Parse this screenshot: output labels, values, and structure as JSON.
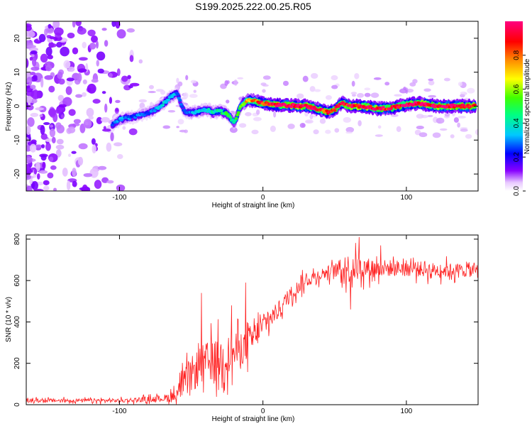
{
  "title": "S199.2025.222.00.25.R05",
  "chart_data": [
    {
      "type": "heatmap",
      "xlabel": "Height of straight line (km)",
      "ylabel": "Frequency (Hz)",
      "xlim": [
        -165,
        150
      ],
      "ylim": [
        -25,
        25
      ],
      "xticks": [
        -100,
        0,
        100
      ],
      "xticklabels": [
        "-100",
        "0",
        "100"
      ],
      "yticks": [
        -20,
        -10,
        0,
        10,
        20
      ],
      "yticklabels": [
        "-20",
        "-10",
        "0",
        "10",
        "20"
      ],
      "colorbar": {
        "label": "Normalized spectral amplitude",
        "range": [
          0,
          1
        ],
        "ticks": [
          0.0,
          0.2,
          0.4,
          0.6,
          0.8
        ],
        "ticklabels": [
          "0.0",
          "0.2",
          "0.4",
          "0.6",
          "0.8"
        ],
        "colormap": "rainbow (white-purple-blue-cyan-green-yellow-orange-red-magenta)"
      },
      "ridge": [
        {
          "x": -105,
          "freq": -5.5,
          "amp": 0.25
        },
        {
          "x": -100,
          "freq": -4.0,
          "amp": 0.3
        },
        {
          "x": -95,
          "freq": -3.5,
          "amp": 0.3
        },
        {
          "x": -90,
          "freq": -3.2,
          "amp": 0.25
        },
        {
          "x": -85,
          "freq": -2.5,
          "amp": 0.3
        },
        {
          "x": -80,
          "freq": -2.0,
          "amp": 0.25
        },
        {
          "x": -75,
          "freq": -1.0,
          "amp": 0.3
        },
        {
          "x": -70,
          "freq": 0.5,
          "amp": 0.35
        },
        {
          "x": -65,
          "freq": 2.5,
          "amp": 0.35
        },
        {
          "x": -60,
          "freq": 4.0,
          "amp": 0.3
        },
        {
          "x": -55,
          "freq": -1.5,
          "amp": 0.25
        },
        {
          "x": -50,
          "freq": -2.0,
          "amp": 0.3
        },
        {
          "x": -45,
          "freq": -1.5,
          "amp": 0.35
        },
        {
          "x": -40,
          "freq": -1.0,
          "amp": 0.35
        },
        {
          "x": -35,
          "freq": -1.8,
          "amp": 0.4
        },
        {
          "x": -30,
          "freq": -1.5,
          "amp": 0.45
        },
        {
          "x": -25,
          "freq": -2.2,
          "amp": 0.5
        },
        {
          "x": -20,
          "freq": -5.0,
          "amp": 0.45
        },
        {
          "x": -15,
          "freq": 0.5,
          "amp": 0.55
        },
        {
          "x": -10,
          "freq": 1.8,
          "amp": 0.75
        },
        {
          "x": -5,
          "freq": 1.5,
          "amp": 0.8
        },
        {
          "x": 0,
          "freq": 0.8,
          "amp": 0.9
        },
        {
          "x": 10,
          "freq": 0.3,
          "amp": 1.0
        },
        {
          "x": 20,
          "freq": 0.2,
          "amp": 1.0
        },
        {
          "x": 30,
          "freq": 0.0,
          "amp": 0.95
        },
        {
          "x": 40,
          "freq": -1.0,
          "amp": 0.9
        },
        {
          "x": 45,
          "freq": -1.8,
          "amp": 0.85
        },
        {
          "x": 50,
          "freq": -1.0,
          "amp": 0.85
        },
        {
          "x": 55,
          "freq": 1.0,
          "amp": 0.9
        },
        {
          "x": 60,
          "freq": 0.0,
          "amp": 0.95
        },
        {
          "x": 70,
          "freq": 0.0,
          "amp": 1.0
        },
        {
          "x": 80,
          "freq": -0.8,
          "amp": 0.95
        },
        {
          "x": 90,
          "freq": -0.5,
          "amp": 0.9
        },
        {
          "x": 100,
          "freq": 0.5,
          "amp": 0.95
        },
        {
          "x": 110,
          "freq": 0.8,
          "amp": 1.0
        },
        {
          "x": 120,
          "freq": 0.0,
          "amp": 0.95
        },
        {
          "x": 130,
          "freq": 0.0,
          "amp": 1.0
        },
        {
          "x": 140,
          "freq": 0.0,
          "amp": 0.95
        },
        {
          "x": 148,
          "freq": 0.0,
          "amp": 0.95
        }
      ],
      "noise_region_x": [
        -165,
        -85
      ]
    },
    {
      "type": "line",
      "xlabel": "Height of straight line (km)",
      "ylabel": "SNR (10 * v/v)",
      "xlim": [
        -165,
        150
      ],
      "ylim": [
        0,
        820
      ],
      "xticks": [
        -100,
        0,
        100
      ],
      "xticklabels": [
        "-100",
        "0",
        "100"
      ],
      "yticks": [
        0,
        200,
        400,
        600,
        800
      ],
      "yticklabels": [
        "0",
        "200",
        "400",
        "600",
        "800"
      ],
      "series": [
        {
          "name": "SNR",
          "color": "#ff2020",
          "trend_x": [
            -165,
            -100,
            -70,
            -62,
            -55,
            -48,
            -40,
            -30,
            -20,
            -10,
            0,
            10,
            20,
            30,
            40,
            50,
            60,
            70,
            80,
            100,
            120,
            150
          ],
          "trend_y": [
            20,
            20,
            30,
            40,
            100,
            160,
            200,
            220,
            250,
            300,
            380,
            450,
            540,
            600,
            630,
            650,
            660,
            660,
            660,
            660,
            650,
            650
          ],
          "noise_amplitude": [
            15,
            15,
            25,
            50,
            110,
            150,
            170,
            170,
            150,
            130,
            90,
            70,
            60,
            55,
            50,
            55,
            120,
            90,
            70,
            65,
            60,
            55
          ],
          "spikes": [
            {
              "x": -43,
              "y": 540
            },
            {
              "x": -12,
              "y": 590
            },
            {
              "x": -22,
              "y": 480
            },
            {
              "x": 61,
              "y": 460
            },
            {
              "x": 67,
              "y": 810
            },
            {
              "x": 82,
              "y": 770
            }
          ]
        }
      ]
    }
  ]
}
